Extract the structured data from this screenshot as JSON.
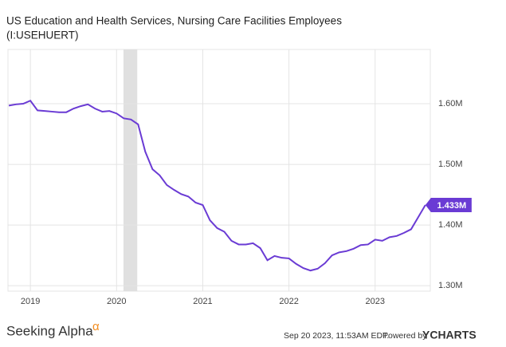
{
  "chart_data": {
    "type": "line",
    "title": "US Education and Health Services, Nursing Care Facilities Employees",
    "subtitle": "(I:USEHUERT)",
    "x": [
      2018.75,
      2018.833,
      2018.917,
      2019,
      2019.083,
      2019.167,
      2019.25,
      2019.333,
      2019.417,
      2019.5,
      2019.583,
      2019.667,
      2019.75,
      2019.833,
      2019.917,
      2020,
      2020.083,
      2020.167,
      2020.25,
      2020.333,
      2020.417,
      2020.5,
      2020.583,
      2020.667,
      2020.75,
      2020.833,
      2020.917,
      2021,
      2021.083,
      2021.167,
      2021.25,
      2021.333,
      2021.417,
      2021.5,
      2021.583,
      2021.667,
      2021.75,
      2021.833,
      2021.917,
      2022,
      2022.083,
      2022.167,
      2022.25,
      2022.333,
      2022.417,
      2022.5,
      2022.583,
      2022.667,
      2022.75,
      2022.833,
      2022.917,
      2023,
      2023.083,
      2023.167,
      2023.25,
      2023.333,
      2023.417,
      2023.5,
      2023.583
    ],
    "series": [
      {
        "name": "US Education and Health Services, Nursing Care Facilities Employees",
        "color": "#6a3bd4",
        "values": [
          1.597,
          1.599,
          1.6,
          1.605,
          1.589,
          1.588,
          1.587,
          1.586,
          1.586,
          1.592,
          1.596,
          1.599,
          1.592,
          1.587,
          1.588,
          1.584,
          1.576,
          1.574,
          1.566,
          1.521,
          1.492,
          1.482,
          1.466,
          1.458,
          1.451,
          1.447,
          1.437,
          1.433,
          1.408,
          1.395,
          1.389,
          1.374,
          1.368,
          1.368,
          1.37,
          1.362,
          1.342,
          1.349,
          1.346,
          1.345,
          1.336,
          1.329,
          1.325,
          1.328,
          1.337,
          1.35,
          1.355,
          1.357,
          1.361,
          1.367,
          1.368,
          1.376,
          1.374,
          1.38,
          1.382,
          1.387,
          1.393,
          1.413,
          1.433
        ],
        "value_labels": [
          null,
          null,
          null,
          null,
          null,
          null,
          null,
          null,
          null,
          null,
          null,
          null,
          null,
          null,
          null,
          null,
          null,
          null,
          null,
          null,
          null,
          null,
          null,
          null,
          null,
          null,
          null,
          null,
          null,
          null,
          null,
          null,
          null,
          null,
          null,
          null,
          null,
          null,
          null,
          null,
          null,
          null,
          null,
          null,
          null,
          null,
          null,
          null,
          null,
          null,
          null,
          null,
          null,
          null,
          null,
          null,
          null,
          null,
          "1.433M"
        ]
      }
    ],
    "shaded_region": [
      2020.08,
      2020.24
    ],
    "shaded_color": "#e0e0e0",
    "xlim": [
      2018.74,
      2023.64
    ],
    "xticks": [
      2019,
      2020,
      2021,
      2022,
      2023
    ],
    "ylim": [
      1.291,
      1.6895
    ],
    "yticks": [
      {
        "value": 1.3,
        "label": "1.30M"
      },
      {
        "value": 1.4,
        "label": "1.40M"
      },
      {
        "value": 1.5,
        "label": "1.50M"
      },
      {
        "value": 1.6,
        "label": "1.60M"
      }
    ],
    "grid": true
  },
  "footer": {
    "brand": "Seeking Alpha",
    "brand_symbol": "α",
    "timestamp": "Sep 20 2023, 11:53AM EDT.",
    "powered_by": "Powered by",
    "provider": "YCHARTS"
  }
}
